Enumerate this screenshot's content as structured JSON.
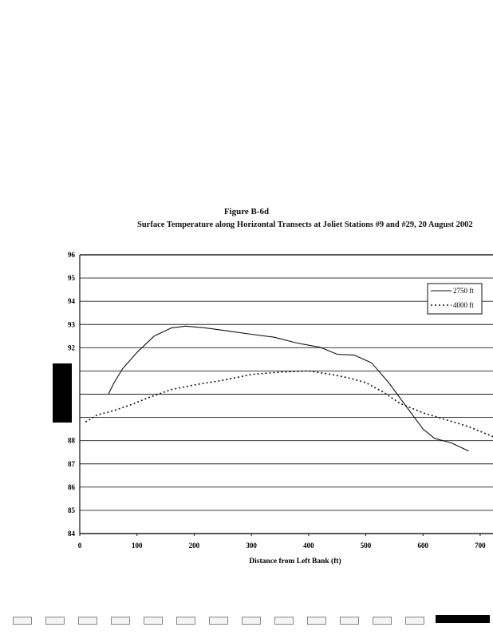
{
  "chart_data": {
    "type": "line",
    "title": "Figure B-6d",
    "subtitle": "Surface Temperature along Horizontal Transects at Joliet Stations #9 and #29, 20 August 2002",
    "xlabel": "Distance from Left Bank (ft)",
    "ylabel": "",
    "xlim": [
      0,
      750
    ],
    "ylim": [
      84,
      96
    ],
    "x_ticks": [
      "0",
      "100",
      "200",
      "300",
      "400",
      "500",
      "600",
      "700"
    ],
    "y_ticks": [
      "84",
      "85",
      "86",
      "87",
      "88",
      "",
      "",
      "",
      "92",
      "93",
      "94",
      "95",
      "96"
    ],
    "legend_position": "top-right",
    "grid": true,
    "series": [
      {
        "name": "2750 ft",
        "style": "solid",
        "x": [
          50,
          60,
          75,
          100,
          130,
          160,
          185,
          220,
          260,
          300,
          340,
          380,
          420,
          450,
          480,
          510,
          540,
          570,
          600,
          620,
          650,
          680
        ],
        "y": [
          90.0,
          90.5,
          91.1,
          91.8,
          92.5,
          92.85,
          92.93,
          92.85,
          92.72,
          92.58,
          92.45,
          92.2,
          92.02,
          91.72,
          91.68,
          91.35,
          90.5,
          89.5,
          88.5,
          88.1,
          87.9,
          87.55
        ]
      },
      {
        "name": "4000 ft",
        "style": "dotted",
        "x": [
          10,
          30,
          60,
          90,
          120,
          160,
          200,
          250,
          300,
          350,
          400,
          440,
          470,
          500,
          530,
          560,
          600,
          640,
          680,
          720,
          740
        ],
        "y": [
          88.8,
          89.1,
          89.3,
          89.55,
          89.85,
          90.2,
          90.4,
          90.6,
          90.85,
          90.95,
          91.0,
          90.85,
          90.7,
          90.5,
          90.1,
          89.6,
          89.2,
          88.9,
          88.6,
          88.2,
          87.9
        ]
      }
    ]
  },
  "colors": {
    "line": "#111111",
    "grid": "#222222",
    "background": "#ffffff"
  }
}
